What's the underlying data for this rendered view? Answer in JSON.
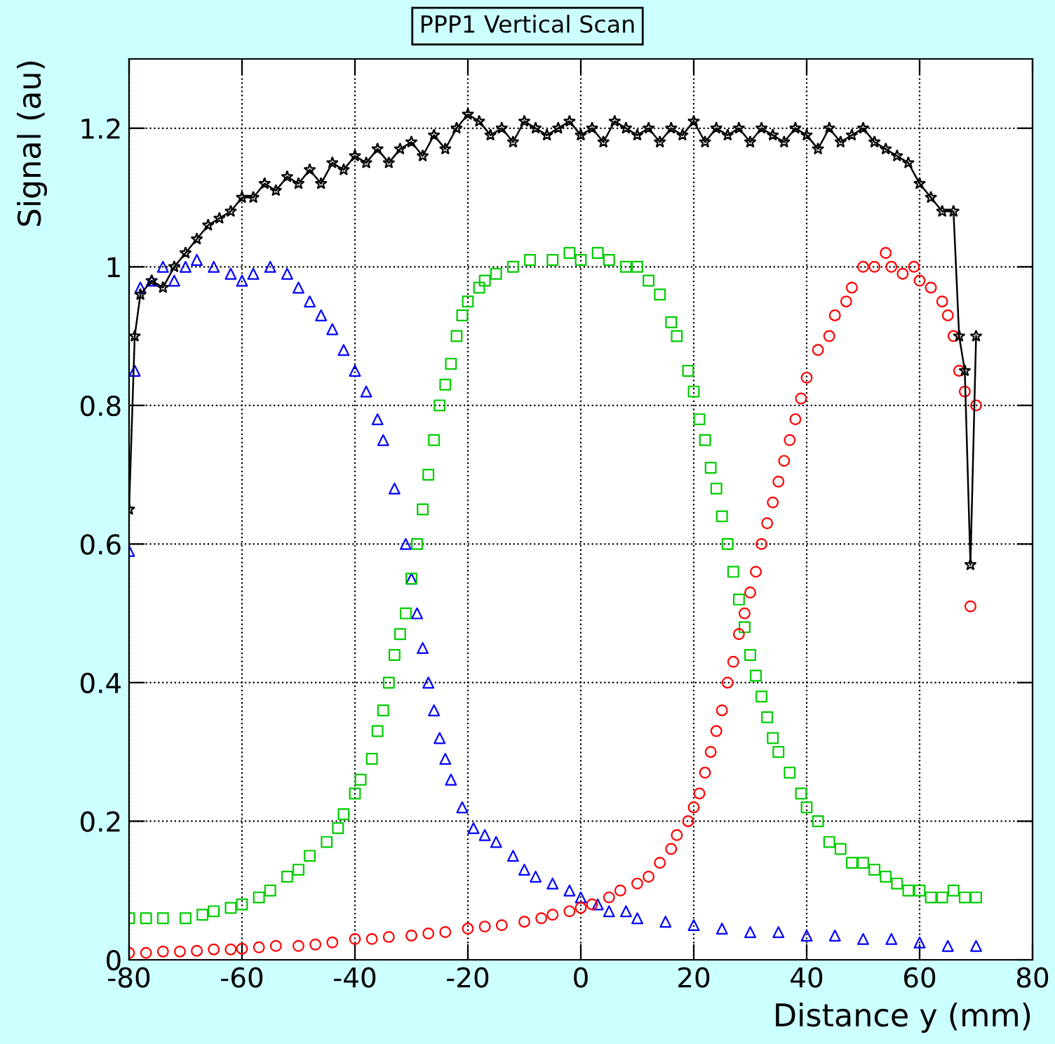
{
  "chart_data": {
    "type": "scatter",
    "title": "PPP1 Vertical Scan",
    "xlabel": "Distance y (mm)",
    "ylabel": "Signal (au)",
    "xlim": [
      -80,
      80
    ],
    "xticks": [
      -80,
      -60,
      -40,
      -20,
      0,
      20,
      40,
      60,
      80
    ],
    "ylim": [
      0,
      1.3
    ],
    "yticks": [
      0,
      0.2,
      0.4,
      0.6,
      0.8,
      1,
      1.2
    ],
    "grid": true,
    "series": [
      {
        "type": "line",
        "marker": "star",
        "color": "#000000",
        "x": [
          -80,
          -79,
          -78,
          -76,
          -74,
          -72,
          -70,
          -68,
          -66,
          -64,
          -62,
          -60,
          -58,
          -56,
          -54,
          -52,
          -50,
          -48,
          -46,
          -44,
          -42,
          -40,
          -38,
          -36,
          -34,
          -32,
          -30,
          -28,
          -26,
          -24,
          -22,
          -20,
          -18,
          -16,
          -14,
          -12,
          -10,
          -8,
          -6,
          -4,
          -2,
          0,
          2,
          4,
          6,
          8,
          10,
          12,
          14,
          16,
          18,
          20,
          22,
          24,
          26,
          28,
          30,
          32,
          34,
          36,
          38,
          40,
          42,
          44,
          46,
          48,
          50,
          52,
          54,
          56,
          58,
          60,
          62,
          64,
          66,
          67,
          68,
          69,
          70
        ],
        "values": [
          0.65,
          0.9,
          0.96,
          0.98,
          0.97,
          1.0,
          1.02,
          1.04,
          1.06,
          1.07,
          1.08,
          1.1,
          1.1,
          1.12,
          1.11,
          1.13,
          1.12,
          1.14,
          1.12,
          1.15,
          1.14,
          1.16,
          1.15,
          1.17,
          1.15,
          1.17,
          1.18,
          1.16,
          1.19,
          1.17,
          1.2,
          1.22,
          1.21,
          1.19,
          1.2,
          1.18,
          1.21,
          1.2,
          1.19,
          1.2,
          1.21,
          1.19,
          1.2,
          1.18,
          1.21,
          1.2,
          1.19,
          1.2,
          1.18,
          1.2,
          1.19,
          1.21,
          1.18,
          1.2,
          1.19,
          1.2,
          1.18,
          1.2,
          1.19,
          1.18,
          1.2,
          1.19,
          1.17,
          1.2,
          1.18,
          1.19,
          1.2,
          1.18,
          1.17,
          1.16,
          1.15,
          1.12,
          1.1,
          1.08,
          1.08,
          0.9,
          0.85,
          0.57,
          0.9
        ]
      },
      {
        "marker": "triangle",
        "color": "#0000ff",
        "x": [
          -80,
          -79,
          -78,
          -76,
          -74,
          -72,
          -70,
          -68,
          -65,
          -62,
          -60,
          -58,
          -55,
          -52,
          -50,
          -48,
          -46,
          -44,
          -42,
          -40,
          -38,
          -36,
          -35,
          -33,
          -31,
          -30,
          -29,
          -28,
          -27,
          -26,
          -25,
          -24,
          -23,
          -21,
          -19,
          -17,
          -15,
          -12,
          -10,
          -8,
          -5,
          -2,
          0,
          3,
          5,
          8,
          10,
          15,
          20,
          25,
          30,
          35,
          40,
          45,
          50,
          55,
          60,
          65,
          70
        ],
        "values": [
          0.59,
          0.85,
          0.97,
          0.98,
          1.0,
          0.98,
          1.0,
          1.01,
          1.0,
          0.99,
          0.98,
          0.99,
          1.0,
          0.99,
          0.97,
          0.95,
          0.93,
          0.91,
          0.88,
          0.85,
          0.82,
          0.78,
          0.75,
          0.68,
          0.6,
          0.55,
          0.5,
          0.45,
          0.4,
          0.36,
          0.32,
          0.29,
          0.26,
          0.22,
          0.19,
          0.18,
          0.17,
          0.15,
          0.13,
          0.12,
          0.11,
          0.1,
          0.09,
          0.08,
          0.07,
          0.07,
          0.06,
          0.055,
          0.05,
          0.045,
          0.04,
          0.04,
          0.035,
          0.035,
          0.03,
          0.03,
          0.025,
          0.02,
          0.02
        ]
      },
      {
        "marker": "square",
        "color": "#00cc00",
        "x": [
          -80,
          -77,
          -74,
          -70,
          -67,
          -65,
          -62,
          -60,
          -57,
          -55,
          -52,
          -50,
          -48,
          -45,
          -43,
          -42,
          -40,
          -39,
          -37,
          -36,
          -35,
          -34,
          -33,
          -32,
          -31,
          -30,
          -29,
          -28,
          -27,
          -26,
          -25,
          -24,
          -23,
          -22,
          -21,
          -20,
          -18,
          -17,
          -15,
          -12,
          -9,
          -5,
          -2,
          0,
          3,
          5,
          8,
          10,
          12,
          14,
          16,
          17,
          19,
          20,
          21,
          22,
          23,
          24,
          25,
          26,
          27,
          28,
          29,
          30,
          31,
          32,
          33,
          34,
          35,
          37,
          39,
          40,
          42,
          44,
          46,
          48,
          50,
          52,
          54,
          56,
          58,
          60,
          62,
          64,
          66,
          68,
          70
        ],
        "values": [
          0.06,
          0.06,
          0.06,
          0.06,
          0.065,
          0.07,
          0.075,
          0.08,
          0.09,
          0.1,
          0.12,
          0.13,
          0.15,
          0.17,
          0.19,
          0.21,
          0.24,
          0.26,
          0.29,
          0.33,
          0.36,
          0.4,
          0.44,
          0.47,
          0.5,
          0.55,
          0.6,
          0.65,
          0.7,
          0.75,
          0.8,
          0.83,
          0.86,
          0.9,
          0.93,
          0.95,
          0.97,
          0.98,
          0.99,
          1.0,
          1.01,
          1.01,
          1.02,
          1.01,
          1.02,
          1.01,
          1.0,
          1.0,
          0.98,
          0.96,
          0.92,
          0.9,
          0.85,
          0.82,
          0.78,
          0.75,
          0.71,
          0.68,
          0.64,
          0.6,
          0.56,
          0.52,
          0.48,
          0.44,
          0.41,
          0.38,
          0.35,
          0.32,
          0.3,
          0.27,
          0.24,
          0.22,
          0.2,
          0.17,
          0.16,
          0.14,
          0.14,
          0.13,
          0.12,
          0.11,
          0.1,
          0.1,
          0.09,
          0.09,
          0.1,
          0.09,
          0.09
        ]
      },
      {
        "marker": "circle",
        "color": "#ff0000",
        "x": [
          -80,
          -77,
          -74,
          -71,
          -68,
          -65,
          -62,
          -60,
          -57,
          -54,
          -50,
          -47,
          -44,
          -40,
          -37,
          -34,
          -30,
          -27,
          -24,
          -20,
          -17,
          -14,
          -10,
          -7,
          -5,
          -2,
          0,
          2,
          5,
          7,
          10,
          12,
          14,
          16,
          17,
          19,
          20,
          21,
          22,
          23,
          24,
          25,
          26,
          27,
          28,
          29,
          30,
          31,
          32,
          33,
          34,
          35,
          36,
          37,
          38,
          39,
          40,
          42,
          44,
          45,
          47,
          48,
          50,
          52,
          54,
          55,
          57,
          59,
          60,
          62,
          64,
          65,
          66,
          67,
          68,
          69,
          70
        ],
        "values": [
          0.01,
          0.01,
          0.012,
          0.012,
          0.013,
          0.015,
          0.015,
          0.016,
          0.018,
          0.02,
          0.02,
          0.022,
          0.025,
          0.03,
          0.03,
          0.033,
          0.035,
          0.038,
          0.04,
          0.045,
          0.048,
          0.05,
          0.055,
          0.06,
          0.065,
          0.07,
          0.075,
          0.08,
          0.09,
          0.1,
          0.11,
          0.12,
          0.14,
          0.16,
          0.18,
          0.2,
          0.22,
          0.24,
          0.27,
          0.3,
          0.33,
          0.36,
          0.4,
          0.43,
          0.47,
          0.5,
          0.53,
          0.56,
          0.6,
          0.63,
          0.66,
          0.69,
          0.72,
          0.75,
          0.78,
          0.81,
          0.84,
          0.88,
          0.9,
          0.93,
          0.95,
          0.97,
          1.0,
          1.0,
          1.02,
          1.0,
          0.99,
          1.0,
          0.98,
          0.97,
          0.95,
          0.93,
          0.9,
          0.85,
          0.82,
          0.51,
          0.8
        ]
      }
    ]
  }
}
